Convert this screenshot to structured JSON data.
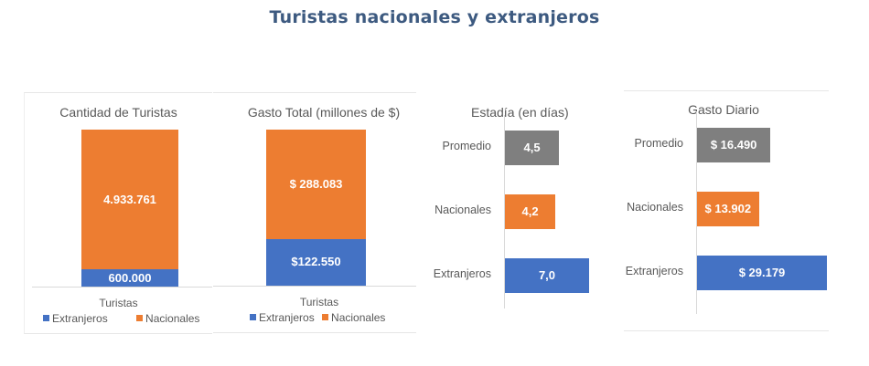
{
  "title": "Turistas nacionales y extranjeros",
  "colors": {
    "extranjeros": "#4472c4",
    "nacionales": "#ed7d31",
    "promedio": "#7f7f7f",
    "title": "#3d5a80"
  },
  "chart_data": [
    {
      "type": "bar",
      "stacked": true,
      "title": "Cantidad de Turistas",
      "categories": [
        "Turistas"
      ],
      "series": [
        {
          "name": "Extranjeros",
          "values": [
            600000
          ],
          "label": "600.000"
        },
        {
          "name": "Nacionales",
          "values": [
            4933761
          ],
          "label": "4.933.761"
        }
      ],
      "legend": [
        "Extranjeros",
        "Nacionales"
      ],
      "legend_position": "bottom"
    },
    {
      "type": "bar",
      "stacked": true,
      "title": "Gasto Total (millones de $)",
      "categories": [
        "Turistas"
      ],
      "series": [
        {
          "name": "Extranjeros",
          "values": [
            122550
          ],
          "label": "$122.550"
        },
        {
          "name": "Nacionales",
          "values": [
            288083
          ],
          "label": "$ 288.083"
        }
      ],
      "legend": [
        "Extranjeros",
        "Nacionales"
      ],
      "legend_position": "bottom"
    },
    {
      "type": "bar",
      "orientation": "horizontal",
      "title": "Estadía (en días)",
      "categories": [
        "Promedio",
        "Nacionales",
        "Extranjeros"
      ],
      "values": [
        4.5,
        4.2,
        7.0
      ],
      "labels": [
        "4,5",
        "4,2",
        "7,0"
      ]
    },
    {
      "type": "bar",
      "orientation": "horizontal",
      "title": "Gasto Diario",
      "categories": [
        "Promedio",
        "Nacionales",
        "Extranjeros"
      ],
      "values": [
        16490,
        13902,
        29179
      ],
      "labels": [
        "$ 16.490",
        "$ 13.902",
        "$ 29.179"
      ]
    }
  ]
}
